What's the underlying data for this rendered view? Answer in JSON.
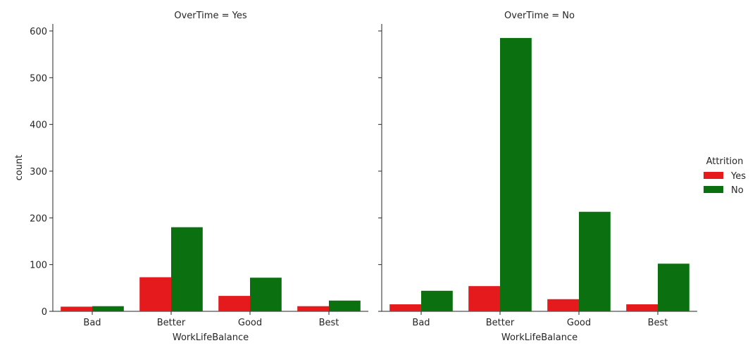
{
  "chart_data": {
    "type": "bar",
    "ylabel": "count",
    "ylim": [
      0,
      615
    ],
    "yticks": [
      0,
      100,
      200,
      300,
      400,
      500,
      600
    ],
    "grid": false,
    "categories": [
      "Bad",
      "Better",
      "Good",
      "Best"
    ],
    "legend": {
      "title": "Attrition",
      "placement": "right",
      "entries": [
        {
          "label": "Yes",
          "color": "#e41a1c"
        },
        {
          "label": "No",
          "color": "#0b7010"
        }
      ]
    },
    "panels": [
      {
        "title": "OverTime = Yes",
        "xlabel": "WorkLifeBalance",
        "series": [
          {
            "name": "Yes",
            "values": [
              10,
              73,
              33,
              11
            ]
          },
          {
            "name": "No",
            "values": [
              11,
              180,
              72,
              23
            ]
          }
        ]
      },
      {
        "title": "OverTime = No",
        "xlabel": "WorkLifeBalance",
        "series": [
          {
            "name": "Yes",
            "values": [
              15,
              54,
              26,
              15
            ]
          },
          {
            "name": "No",
            "values": [
              44,
              585,
              213,
              102
            ]
          }
        ]
      }
    ]
  }
}
